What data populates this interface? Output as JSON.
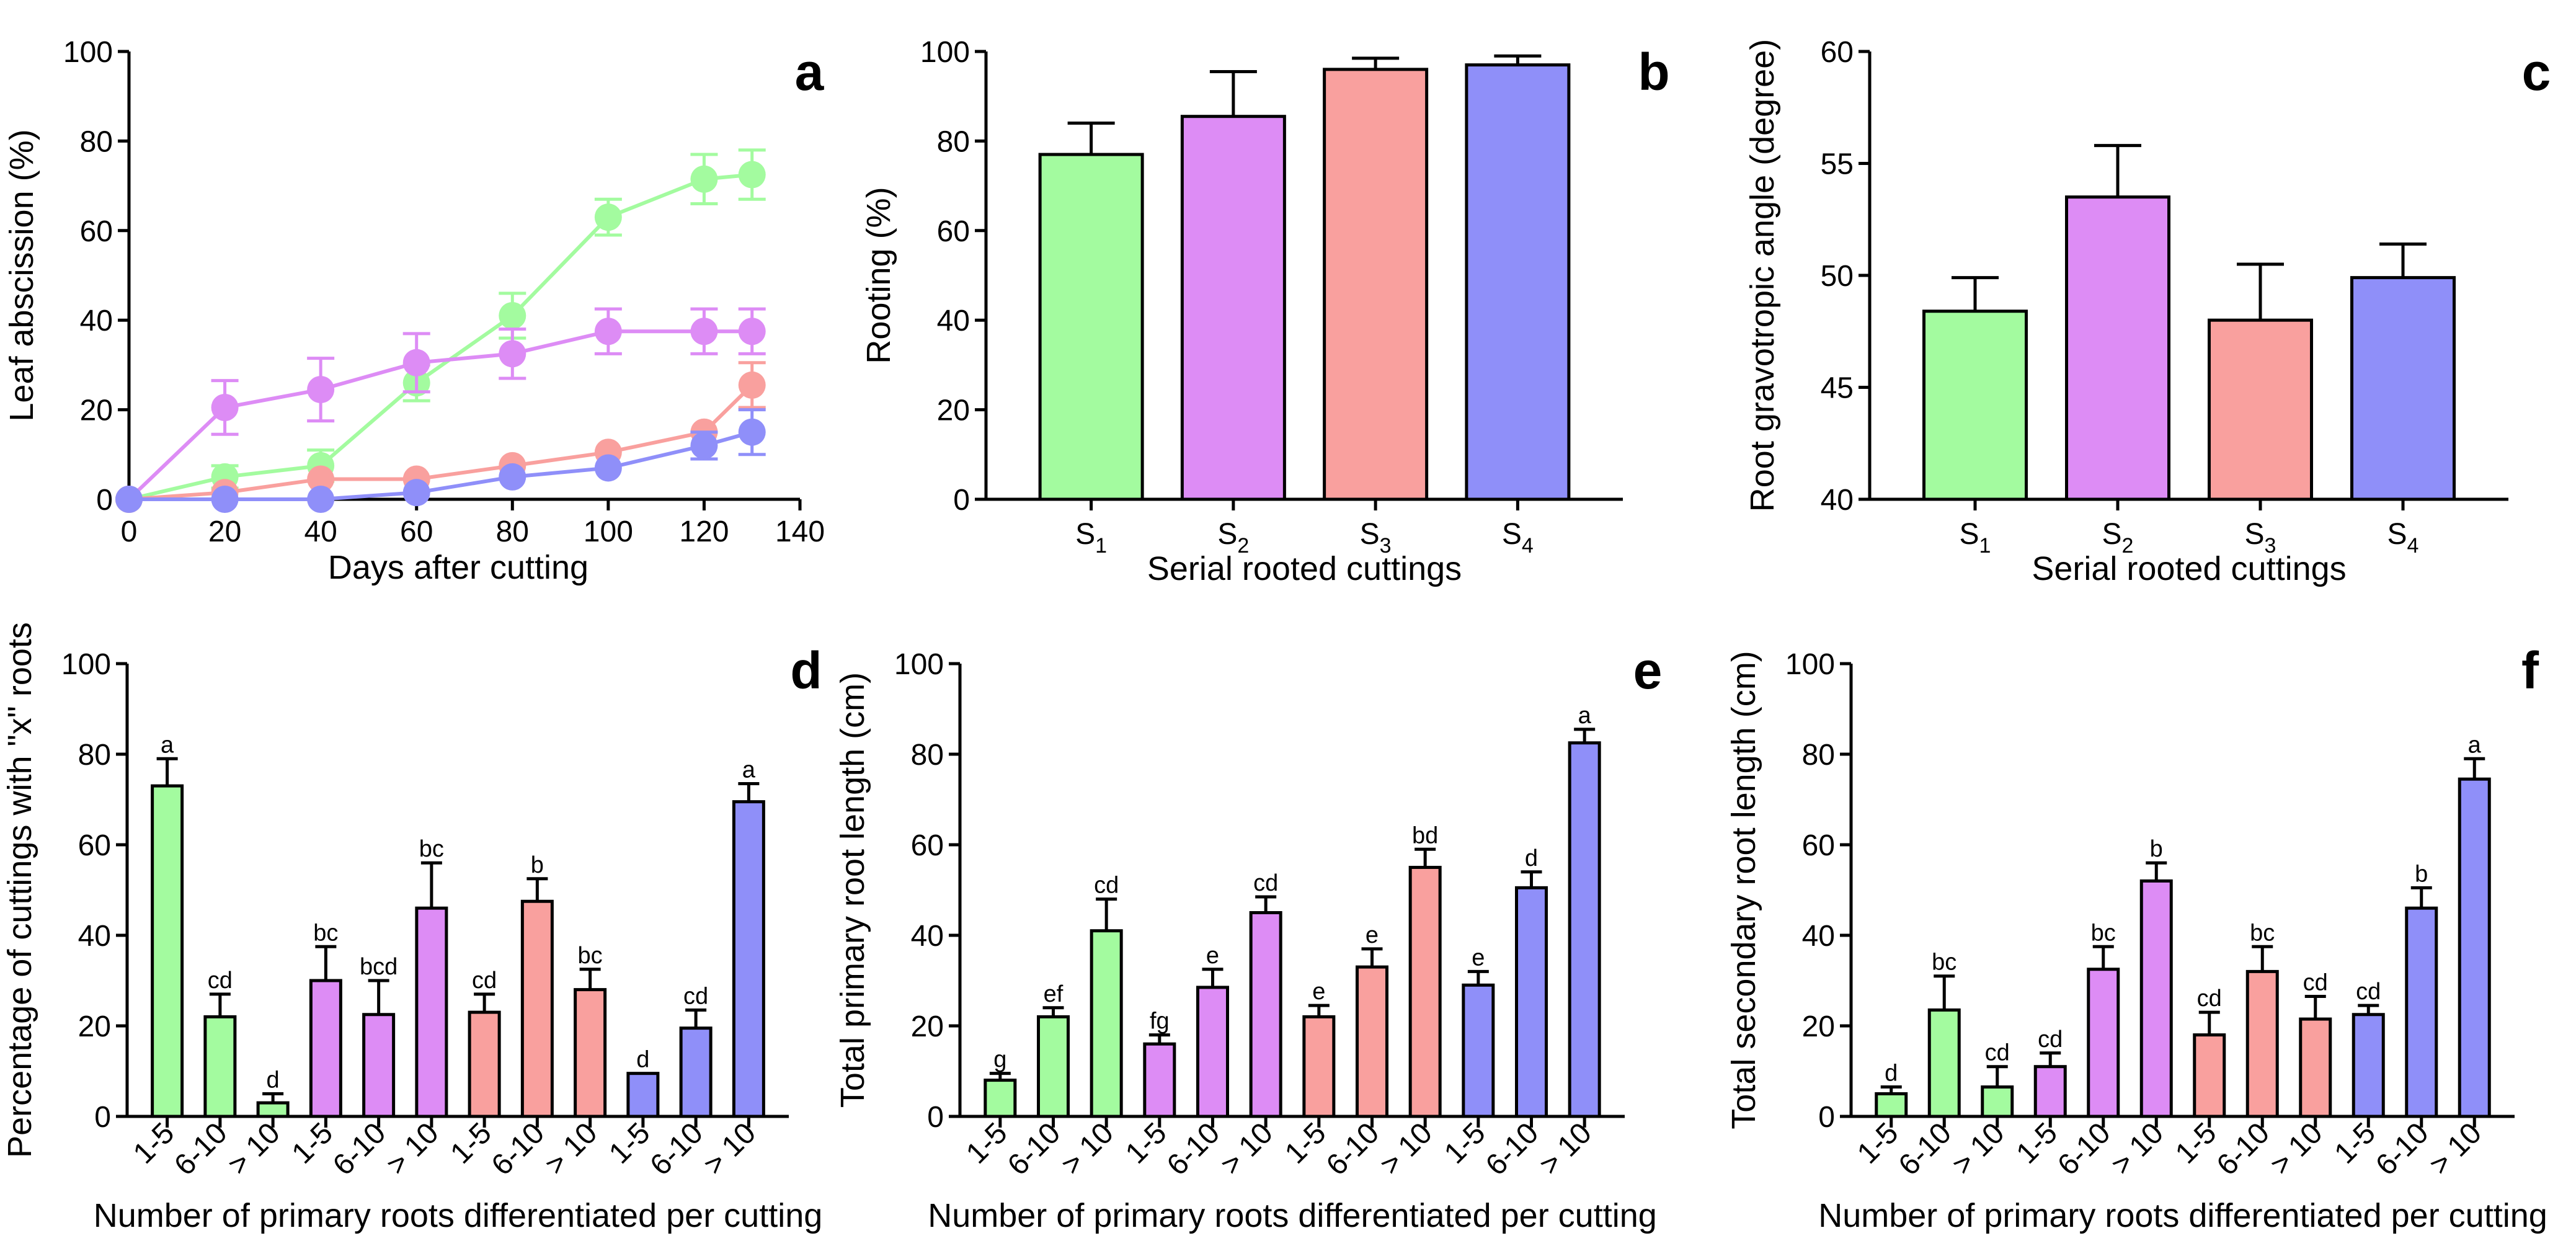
{
  "colors": {
    "S1": "#a3fb9f",
    "S2": "#dd8cf5",
    "S3": "#f9a09e",
    "S4": "#8f8ff9",
    "axis": "#000000"
  },
  "chart_data": [
    {
      "id": "a",
      "panel_label": "a",
      "type": "line",
      "xlabel": "Days after cutting",
      "ylabel": "Leaf abscission (%)",
      "xlim": [
        0,
        140
      ],
      "xticks": [
        0,
        20,
        40,
        60,
        80,
        100,
        120,
        140
      ],
      "ylim": [
        0,
        100
      ],
      "yticks": [
        0,
        20,
        40,
        60,
        80,
        100
      ],
      "x": [
        0,
        20,
        40,
        60,
        80,
        100,
        120,
        130
      ],
      "series": [
        {
          "name": "S1",
          "color": "#a3fb9f",
          "values": [
            0,
            5,
            7.5,
            26,
            41,
            63,
            71.5,
            72.5
          ],
          "errors": [
            0,
            2.5,
            3.5,
            4,
            5,
            4,
            5.5,
            5.5
          ]
        },
        {
          "name": "S2",
          "color": "#dd8cf5",
          "values": [
            0,
            20.5,
            24.5,
            30.5,
            32.5,
            37.5,
            37.5,
            37.5
          ],
          "errors": [
            0,
            6,
            7,
            6.5,
            5.5,
            5,
            5,
            5
          ]
        },
        {
          "name": "S3",
          "color": "#f9a09e",
          "values": [
            0,
            1.5,
            4.5,
            4.5,
            7.5,
            10.5,
            15,
            25.5
          ],
          "errors": [
            0,
            0,
            0,
            0,
            0,
            0,
            0,
            5
          ]
        },
        {
          "name": "S4",
          "color": "#8f8ff9",
          "values": [
            0,
            0,
            0,
            1.5,
            5,
            7,
            12,
            15
          ],
          "errors": [
            0,
            0,
            0,
            0,
            0,
            0,
            3,
            5
          ]
        }
      ]
    },
    {
      "id": "b",
      "panel_label": "b",
      "type": "bar",
      "xlabel": "Serial rooted cuttings",
      "ylabel": "Rooting (%)",
      "ylim": [
        0,
        100
      ],
      "yticks": [
        0,
        20,
        40,
        60,
        80,
        100
      ],
      "categories": [
        {
          "base": "S",
          "sub": "1"
        },
        {
          "base": "S",
          "sub": "2"
        },
        {
          "base": "S",
          "sub": "3"
        },
        {
          "base": "S",
          "sub": "4"
        }
      ],
      "values": [
        77,
        85.5,
        96,
        97
      ],
      "errors": [
        7,
        10,
        2.5,
        2
      ],
      "colors": [
        "#a3fb9f",
        "#dd8cf5",
        "#f9a09e",
        "#8f8ff9"
      ]
    },
    {
      "id": "c",
      "panel_label": "c",
      "type": "bar",
      "xlabel": "Serial rooted cuttings",
      "ylabel": "Root gravotropic angle (degree)",
      "ylim": [
        40,
        60
      ],
      "yticks": [
        40,
        45,
        50,
        55,
        60
      ],
      "categories": [
        {
          "base": "S",
          "sub": "1"
        },
        {
          "base": "S",
          "sub": "2"
        },
        {
          "base": "S",
          "sub": "3"
        },
        {
          "base": "S",
          "sub": "4"
        }
      ],
      "values": [
        48.4,
        53.5,
        48,
        49.9
      ],
      "errors": [
        1.5,
        2.3,
        2.5,
        1.5
      ],
      "colors": [
        "#a3fb9f",
        "#dd8cf5",
        "#f9a09e",
        "#8f8ff9"
      ]
    },
    {
      "id": "d",
      "panel_label": "d",
      "type": "bar",
      "xlabel": "Number of primary roots differentiated per cutting",
      "ylabel": "Percentage of cuttings with \"x\" roots",
      "ylim": [
        0,
        100
      ],
      "yticks": [
        0,
        20,
        40,
        60,
        80,
        100
      ],
      "categories": [
        "1-5",
        "6-10",
        "> 10",
        "1-5",
        "6-10",
        "> 10",
        "1-5",
        "6-10",
        "> 10",
        "1-5",
        "6-10",
        "> 10"
      ],
      "values": [
        73,
        22,
        3,
        30,
        22.5,
        46,
        23,
        47.5,
        28,
        9.5,
        19.5,
        69.5
      ],
      "errors": [
        6,
        5,
        2,
        7.5,
        7.5,
        10,
        4,
        5,
        4.5,
        0,
        4,
        4
      ],
      "letters": [
        "a",
        "cd",
        "d",
        "bc",
        "bcd",
        "bc",
        "cd",
        "b",
        "bc",
        "d",
        "cd",
        "a"
      ],
      "colors": [
        "#a3fb9f",
        "#a3fb9f",
        "#a3fb9f",
        "#dd8cf5",
        "#dd8cf5",
        "#dd8cf5",
        "#f9a09e",
        "#f9a09e",
        "#f9a09e",
        "#8f8ff9",
        "#8f8ff9",
        "#8f8ff9"
      ]
    },
    {
      "id": "e",
      "panel_label": "e",
      "type": "bar",
      "xlabel": "Number of primary roots differentiated per cutting",
      "ylabel": "Total primary root length (cm)",
      "ylim": [
        0,
        100
      ],
      "yticks": [
        0,
        20,
        40,
        60,
        80,
        100
      ],
      "categories": [
        "1-5",
        "6-10",
        "> 10",
        "1-5",
        "6-10",
        "> 10",
        "1-5",
        "6-10",
        "> 10",
        "1-5",
        "6-10",
        "> 10"
      ],
      "values": [
        8,
        22,
        41,
        16,
        28.5,
        45,
        22,
        33,
        55,
        29,
        50.5,
        82.5
      ],
      "errors": [
        1.5,
        2,
        7,
        2,
        4,
        3.5,
        2.5,
        4,
        4,
        3,
        3.5,
        3
      ],
      "letters": [
        "g",
        "ef",
        "cd",
        "fg",
        "e",
        "cd",
        "e",
        "e",
        "bd",
        "e",
        "d",
        "a"
      ],
      "colors": [
        "#a3fb9f",
        "#a3fb9f",
        "#a3fb9f",
        "#dd8cf5",
        "#dd8cf5",
        "#dd8cf5",
        "#f9a09e",
        "#f9a09e",
        "#f9a09e",
        "#8f8ff9",
        "#8f8ff9",
        "#8f8ff9"
      ]
    },
    {
      "id": "f",
      "panel_label": "f",
      "type": "bar",
      "xlabel": "Number of primary roots differentiated per cutting",
      "ylabel": "Total secondary root length (cm)",
      "ylim": [
        0,
        100
      ],
      "yticks": [
        0,
        20,
        40,
        60,
        80,
        100
      ],
      "categories": [
        "1-5",
        "6-10",
        "> 10",
        "1-5",
        "6-10",
        "> 10",
        "1-5",
        "6-10",
        "> 10",
        "1-5",
        "6-10",
        "> 10"
      ],
      "values": [
        5,
        23.5,
        6.5,
        11,
        32.5,
        52,
        18,
        32,
        21.5,
        22.5,
        46,
        74.5
      ],
      "errors": [
        1.5,
        7.5,
        4.5,
        3,
        5,
        4,
        5,
        5.5,
        5,
        2,
        4.5,
        4.5
      ],
      "letters": [
        "d",
        "bc",
        "cd",
        "cd",
        "bc",
        "b",
        "cd",
        "bc",
        "cd",
        "cd",
        "b",
        "a"
      ],
      "colors": [
        "#a3fb9f",
        "#a3fb9f",
        "#a3fb9f",
        "#dd8cf5",
        "#dd8cf5",
        "#dd8cf5",
        "#f9a09e",
        "#f9a09e",
        "#f9a09e",
        "#8f8ff9",
        "#8f8ff9",
        "#8f8ff9"
      ]
    }
  ]
}
